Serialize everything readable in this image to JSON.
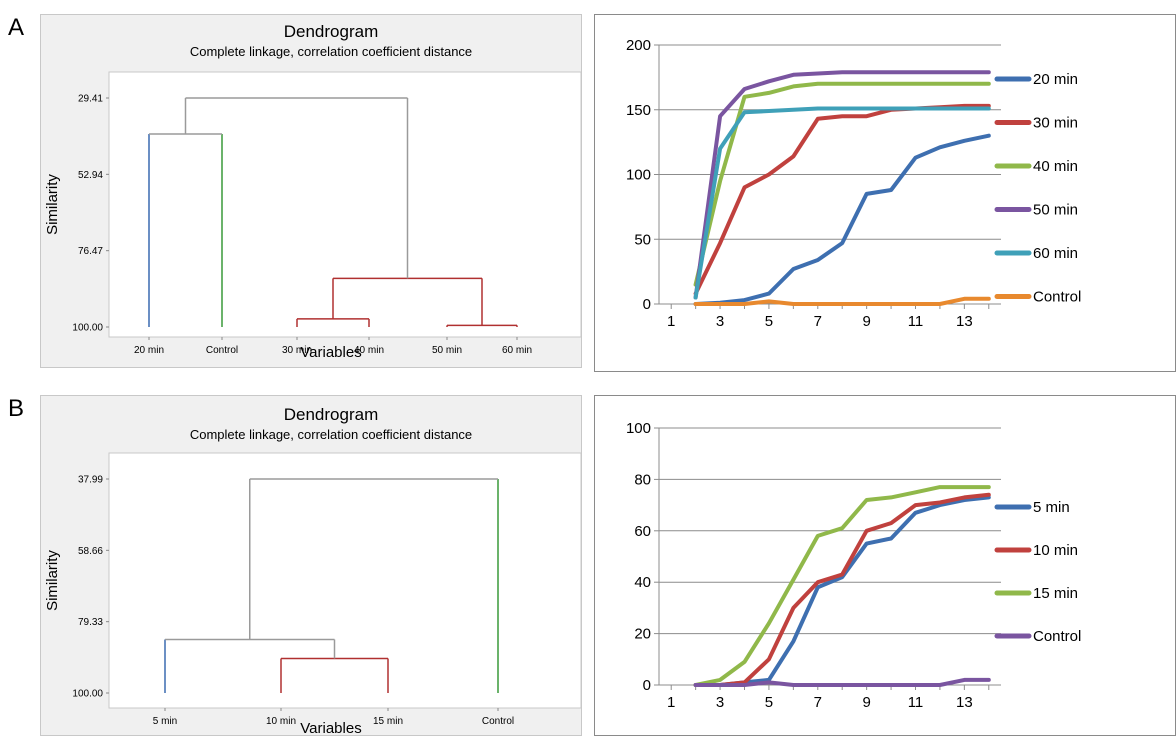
{
  "panels": {
    "a": {
      "letter": "A"
    },
    "b": {
      "letter": "B"
    }
  },
  "chart_data": [
    {
      "id": "dendroA",
      "type": "dendrogram",
      "title": "Dendrogram",
      "subtitle": "Complete linkage, correlation coefficient distance",
      "xlabel": "Variables",
      "ylabel": "Similarity",
      "yticks": [
        "29.41",
        "52.94",
        "76.47",
        "100.00"
      ],
      "ylim": [
        29.41,
        100.0
      ],
      "leaves": [
        "20 min",
        "Control",
        "30 min",
        "40 min",
        "50 min",
        "60 min"
      ],
      "merges": [
        {
          "left": "50 min",
          "right": "60 min",
          "similarity": 99.5,
          "color": "#b03030"
        },
        {
          "left": "30 min",
          "right": "40 min",
          "similarity": 97.5,
          "color": "#b03030"
        },
        {
          "left": "30 min+40 min",
          "right": "50 min+60 min",
          "similarity": 85.0,
          "color": "#b03030"
        },
        {
          "left": "20 min",
          "right": "Control",
          "similarity": 40.5,
          "color": "#9a9a9a"
        },
        {
          "left": "20 min+Control",
          "right": "30-60 min",
          "similarity": 29.41,
          "color": "#9a9a9a"
        }
      ],
      "leaf_colors": {
        "20 min": "#3a6ab0",
        "Control": "#3a9a3a"
      }
    },
    {
      "id": "lineA",
      "type": "line",
      "x": [
        2,
        3,
        4,
        5,
        6,
        7,
        8,
        9,
        10,
        11,
        12,
        13,
        14
      ],
      "xticks": [
        1,
        3,
        5,
        7,
        9,
        11,
        13
      ],
      "xlim": [
        0.5,
        14.5
      ],
      "ylim": [
        0,
        200
      ],
      "yticks": [
        0,
        50,
        100,
        150,
        200
      ],
      "grid": true,
      "legend": "right",
      "series": [
        {
          "name": "20 min",
          "color": "#3e6fb0",
          "values": [
            0,
            1,
            3,
            8,
            27,
            34,
            47,
            85,
            88,
            113,
            121,
            126,
            130
          ]
        },
        {
          "name": "30 min",
          "color": "#c0413e",
          "values": [
            8,
            47,
            90,
            100,
            114,
            143,
            145,
            145,
            150,
            151,
            152,
            153,
            153
          ]
        },
        {
          "name": "40 min",
          "color": "#90b84a",
          "values": [
            15,
            95,
            160,
            163,
            168,
            170,
            170,
            170,
            170,
            170,
            170,
            170,
            170
          ]
        },
        {
          "name": "50 min",
          "color": "#7a55a0",
          "values": [
            5,
            145,
            166,
            172,
            177,
            178,
            179,
            179,
            179,
            179,
            179,
            179,
            179
          ]
        },
        {
          "name": "60 min",
          "color": "#3fa0b8",
          "values": [
            5,
            120,
            148,
            149,
            150,
            151,
            151,
            151,
            151,
            151,
            151,
            151,
            151
          ]
        },
        {
          "name": "Control",
          "color": "#e8892e",
          "values": [
            0,
            0,
            0,
            2,
            0,
            0,
            0,
            0,
            0,
            0,
            0,
            4,
            4
          ]
        }
      ]
    },
    {
      "id": "dendroB",
      "type": "dendrogram",
      "title": "Dendrogram",
      "subtitle": "Complete linkage, correlation coefficient distance",
      "xlabel": "Variables",
      "ylabel": "Similarity",
      "yticks": [
        "37.99",
        "58.66",
        "79.33",
        "100.00"
      ],
      "ylim": [
        37.99,
        100.0
      ],
      "leaves": [
        "5 min",
        "10 min",
        "15 min",
        "Control"
      ],
      "merges": [
        {
          "left": "10 min",
          "right": "15 min",
          "similarity": 90.0,
          "color": "#b03030"
        },
        {
          "left": "5 min",
          "right": "10 min+15 min",
          "similarity": 84.5,
          "color": "#9a9a9a"
        },
        {
          "left": "5-15 min",
          "right": "Control",
          "similarity": 37.99,
          "color": "#9a9a9a"
        }
      ],
      "leaf_colors": {
        "5 min": "#3a6ab0",
        "Control": "#3a9a3a"
      }
    },
    {
      "id": "lineB",
      "type": "line",
      "x": [
        2,
        3,
        4,
        5,
        6,
        7,
        8,
        9,
        10,
        11,
        12,
        13,
        14
      ],
      "xticks": [
        1,
        3,
        5,
        7,
        9,
        11,
        13
      ],
      "xlim": [
        0.5,
        14.5
      ],
      "ylim": [
        0,
        100
      ],
      "yticks": [
        0,
        20,
        40,
        60,
        80,
        100
      ],
      "grid": true,
      "legend": "right",
      "series": [
        {
          "name": "5 min",
          "color": "#3e6fb0",
          "values": [
            0,
            0,
            1,
            2,
            17,
            38,
            42,
            55,
            57,
            67,
            70,
            72,
            73
          ]
        },
        {
          "name": "10 min",
          "color": "#c0413e",
          "values": [
            0,
            0,
            1,
            10,
            30,
            40,
            43,
            60,
            63,
            70,
            71,
            73,
            74
          ]
        },
        {
          "name": "15 min",
          "color": "#90b84a",
          "values": [
            0,
            2,
            9,
            24,
            41,
            58,
            61,
            72,
            73,
            75,
            77,
            77,
            77
          ]
        },
        {
          "name": "Control",
          "color": "#7a55a0",
          "values": [
            0,
            0,
            0,
            1,
            0,
            0,
            0,
            0,
            0,
            0,
            0,
            2,
            2
          ]
        }
      ]
    }
  ]
}
